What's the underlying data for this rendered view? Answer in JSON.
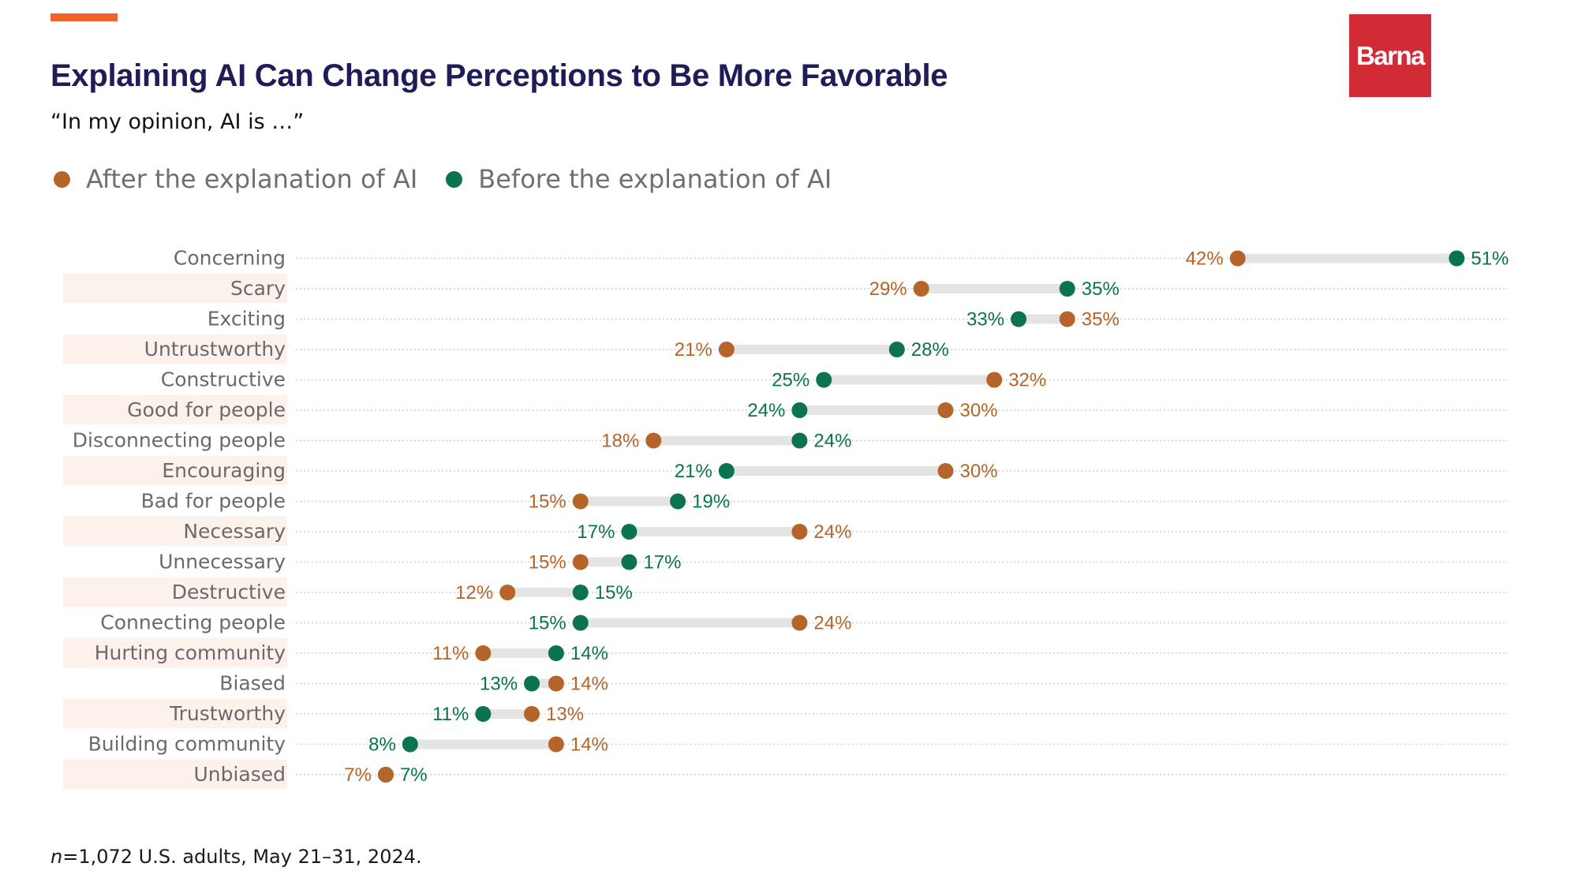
{
  "header": {
    "title": "Explaining AI Can Change Perceptions to Be More Favorable",
    "subtitle": "“In my opinion, AI is …”",
    "logo_text": "Barna"
  },
  "legend": [
    {
      "label": "After the explanation of AI",
      "color": "#b5652a",
      "icon": "circle-dot-icon"
    },
    {
      "label": "Before the explanation of AI",
      "color": "#0b7350",
      "icon": "circle-dot-icon"
    }
  ],
  "footnote": {
    "n_label": "n",
    "rest": "=1,072 U.S. adults, May 21–31, 2024."
  },
  "colors": {
    "accent": "#f0622a",
    "title": "#1f1d57",
    "after": "#b5652a",
    "before": "#0b7350",
    "connector": "#e4e4e4",
    "row_shade": "#fdf1ec",
    "logo": "#d12c36"
  },
  "chart_data": {
    "type": "dumbbell",
    "title": "Explaining AI Can Change Perceptions to Be More Favorable",
    "subtitle": "“In my opinion, AI is …”",
    "xlabel": "",
    "ylabel": "",
    "unit": "%",
    "xlim": [
      0,
      51
    ],
    "grid": "dotted horizontal per row",
    "legend_position": "top-left",
    "categories": [
      "Concerning",
      "Scary",
      "Exciting",
      "Untrustworthy",
      "Constructive",
      "Good for people",
      "Disconnecting people",
      "Encouraging",
      "Bad for people",
      "Necessary",
      "Unnecessary",
      "Destructive",
      "Connecting people",
      "Hurting community",
      "Biased",
      "Trustworthy",
      "Building community",
      "Unbiased"
    ],
    "series": [
      {
        "name": "After the explanation of AI",
        "values": [
          42,
          29,
          35,
          21,
          32,
          30,
          18,
          30,
          15,
          24,
          15,
          12,
          24,
          11,
          14,
          13,
          14,
          7
        ]
      },
      {
        "name": "Before the explanation of AI",
        "values": [
          51,
          35,
          33,
          28,
          25,
          24,
          24,
          21,
          19,
          17,
          17,
          15,
          15,
          14,
          13,
          11,
          8,
          7
        ]
      }
    ]
  }
}
